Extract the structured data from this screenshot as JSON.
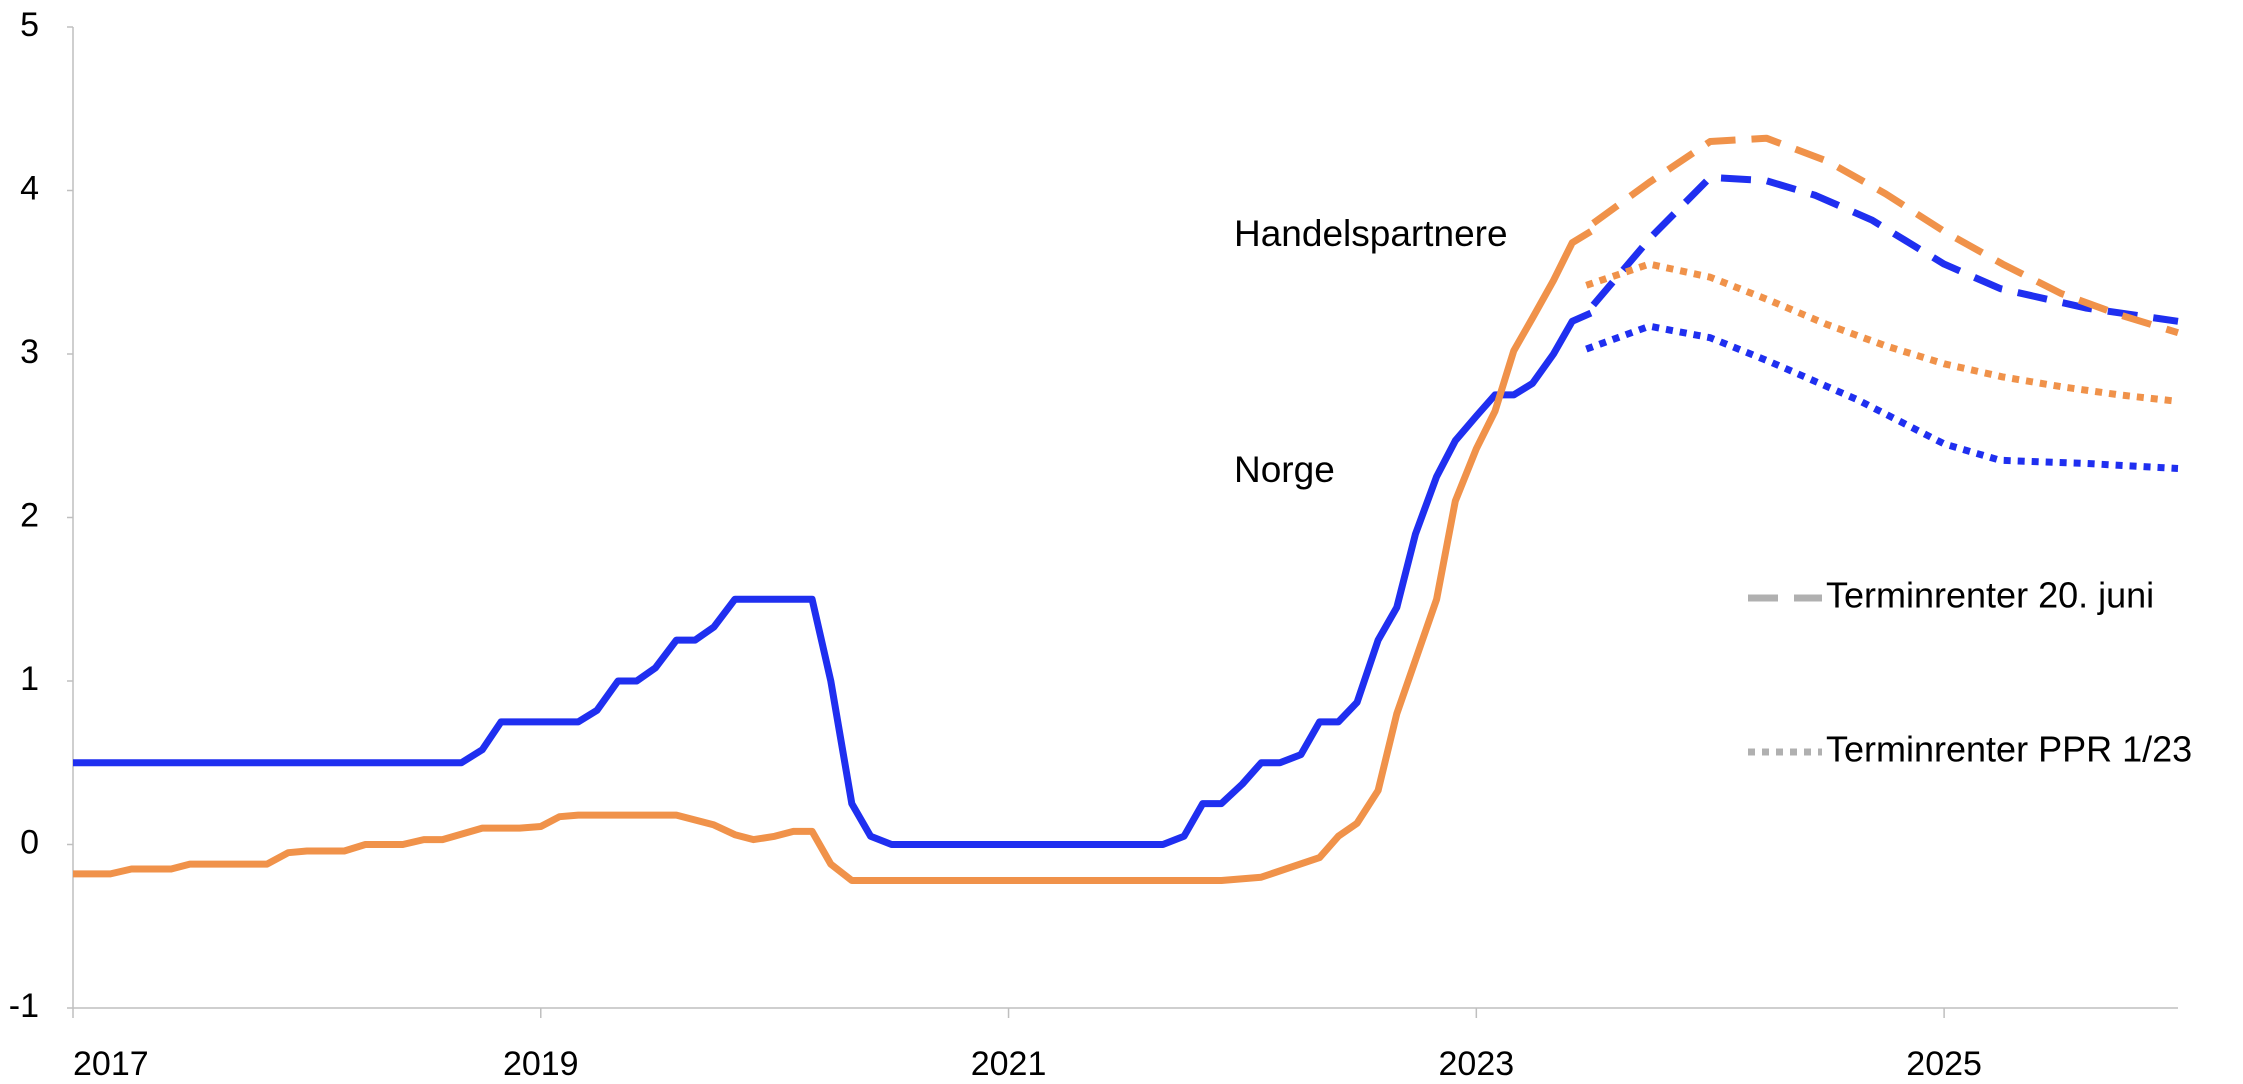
{
  "chart_data": {
    "type": "line",
    "xlim": [
      2017,
      2026
    ],
    "xticks": [
      2017,
      2019,
      2021,
      2023,
      2025
    ],
    "ylim": [
      -1,
      5
    ],
    "yticks": [
      -1,
      0,
      1,
      2,
      3,
      4,
      5
    ],
    "grid": false,
    "series": [
      {
        "name": "Norge",
        "color": "#1f2ff0",
        "dash": "solid",
        "x": [
          2017,
          2018.66,
          2018.75,
          2018.83,
          2019.16,
          2019.24,
          2019.33,
          2019.41,
          2019.49,
          2019.58,
          2019.66,
          2019.74,
          2019.83,
          2020.16,
          2020.24,
          2020.33,
          2020.41,
          2020.5,
          2021.66,
          2021.75,
          2021.83,
          2021.91,
          2022.0,
          2022.08,
          2022.16,
          2022.25,
          2022.33,
          2022.41,
          2022.49,
          2022.58,
          2022.66,
          2022.74,
          2022.83,
          2022.91,
          2023.0,
          2023.08,
          2023.16,
          2023.24,
          2023.33,
          2023.41,
          2023.49
        ],
        "values": [
          0.5,
          0.5,
          0.58,
          0.75,
          0.75,
          0.82,
          1.0,
          1.0,
          1.08,
          1.25,
          1.25,
          1.33,
          1.5,
          1.5,
          1.0,
          0.25,
          0.05,
          0,
          0,
          0.05,
          0.25,
          0.25,
          0.37,
          0.5,
          0.5,
          0.55,
          0.75,
          0.75,
          0.87,
          1.25,
          1.45,
          1.9,
          2.25,
          2.47,
          2.62,
          2.75,
          2.75,
          2.82,
          3.0,
          3.2,
          3.25
        ]
      },
      {
        "name": "Handelspartnere",
        "color": "#f0924a",
        "dash": "solid",
        "x": [
          2017,
          2017.16,
          2017.25,
          2017.42,
          2017.5,
          2017.83,
          2017.92,
          2018.0,
          2018.16,
          2018.25,
          2018.41,
          2018.5,
          2018.58,
          2018.75,
          2018.91,
          2019.0,
          2019.08,
          2019.16,
          2019.58,
          2019.74,
          2019.83,
          2019.91,
          2020.0,
          2020.08,
          2020.16,
          2020.24,
          2020.33,
          2021.91,
          2022.08,
          2022.33,
          2022.41,
          2022.49,
          2022.58,
          2022.66,
          2022.83,
          2022.91,
          2023.0,
          2023.08,
          2023.16,
          2023.24,
          2023.33,
          2023.41,
          2023.49
        ],
        "values": [
          -0.18,
          -0.18,
          -0.15,
          -0.15,
          -0.12,
          -0.12,
          -0.05,
          -0.04,
          -0.04,
          0,
          0,
          0.03,
          0.03,
          0.1,
          0.1,
          0.11,
          0.17,
          0.18,
          0.18,
          0.12,
          0.06,
          0.03,
          0.05,
          0.08,
          0.08,
          -0.12,
          -0.22,
          -0.22,
          -0.2,
          -0.08,
          0.05,
          0.13,
          0.33,
          0.8,
          1.5,
          2.1,
          2.42,
          2.65,
          3.02,
          3.22,
          3.45,
          3.68,
          3.75
        ]
      },
      {
        "color": "#1f2ff0",
        "dash": "dashed",
        "x": [
          2023.5,
          2023.75,
          2024.0,
          2024.24,
          2024.45,
          2024.69,
          2025.0,
          2025.24,
          2025.61,
          2026.0
        ],
        "values": [
          3.3,
          3.72,
          4.08,
          4.06,
          3.97,
          3.82,
          3.55,
          3.4,
          3.28,
          3.2
        ]
      },
      {
        "color": "#1f2ff0",
        "dash": "dotted",
        "x": [
          2023.47,
          2023.74,
          2024.0,
          2024.26,
          2024.63,
          2025.0,
          2025.24,
          2025.61,
          2026.0
        ],
        "values": [
          3.03,
          3.17,
          3.1,
          2.95,
          2.72,
          2.45,
          2.35,
          2.33,
          2.3
        ]
      },
      {
        "color": "#f0924a",
        "dash": "dashed",
        "x": [
          2023.5,
          2023.74,
          2024.0,
          2024.24,
          2024.5,
          2024.75,
          2025.0,
          2025.25,
          2025.5,
          2025.75,
          2026.0
        ],
        "values": [
          3.8,
          4.05,
          4.3,
          4.32,
          4.18,
          3.98,
          3.75,
          3.55,
          3.37,
          3.24,
          3.13
        ]
      },
      {
        "color": "#f0924a",
        "dash": "dotted",
        "x": [
          2023.47,
          2023.74,
          2024.0,
          2024.25,
          2024.5,
          2024.75,
          2025.0,
          2025.25,
          2025.5,
          2025.75,
          2026.0
        ],
        "values": [
          3.42,
          3.55,
          3.47,
          3.33,
          3.18,
          3.05,
          2.94,
          2.86,
          2.8,
          2.75,
          2.71
        ]
      }
    ],
    "legend": [
      {
        "label": "Terminrenter 20. juni",
        "dash": "dashed",
        "color": "#b0b0b0"
      },
      {
        "label": "Terminrenter PPR 1/23",
        "dash": "dotted",
        "color": "#b0b0b0"
      }
    ]
  }
}
